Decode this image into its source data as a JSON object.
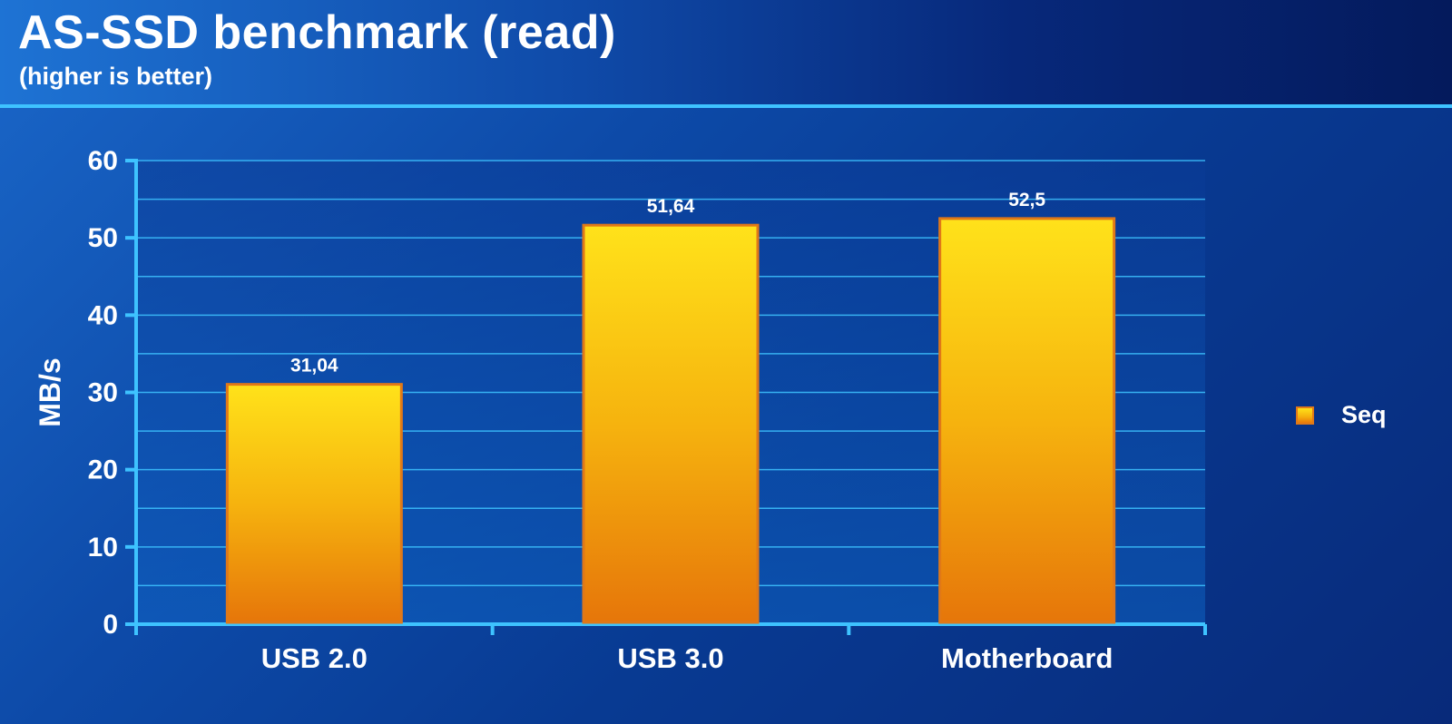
{
  "header": {
    "title": "AS-SSD benchmark (read)",
    "subtitle": "(higher is better)"
  },
  "chart_data": {
    "type": "bar",
    "title": "AS-SSD benchmark (read)",
    "subtitle": "(higher is better)",
    "xlabel": "",
    "ylabel": "MB/s",
    "ylim": [
      0,
      60
    ],
    "yticks": [
      0,
      10,
      20,
      30,
      40,
      50,
      60
    ],
    "minor_gridlines": true,
    "grid": true,
    "categories": [
      "USB 2.0",
      "USB 3.0",
      "Motherboard"
    ],
    "series": [
      {
        "name": "Seq",
        "values": [
          31.04,
          51.64,
          52.5
        ],
        "labels": [
          "31,04",
          "51,64",
          "52,5"
        ]
      }
    ],
    "legend_position": "right",
    "colors": {
      "bar_top": "#ffe21a",
      "bar_mid": "#f6b30e",
      "bar_bottom": "#e6760a",
      "bar_border": "#e07818",
      "axis": "#3ec3ff",
      "gridline": "#3ec3ff",
      "text": "#ffffff"
    }
  }
}
